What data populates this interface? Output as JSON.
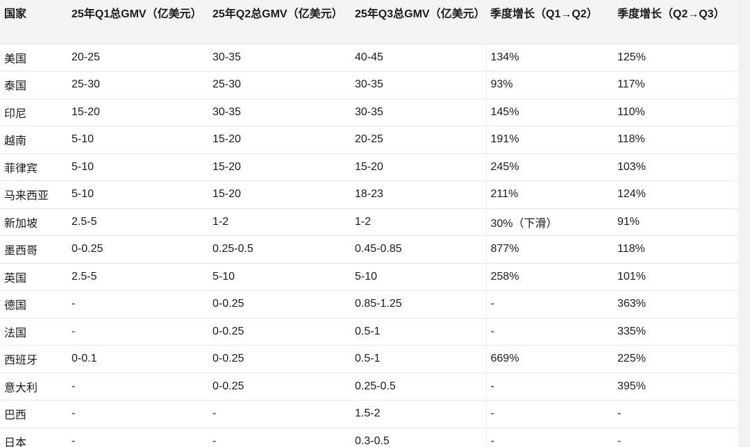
{
  "table": {
    "header": [
      "国家",
      "25年Q1总GMV（亿美元）",
      "25年Q2总GMV（亿美元）",
      "25年Q3总GMV（亿美元）",
      "季度增长（Q1→Q2）",
      "季度增长（Q2→Q3）"
    ],
    "rows": [
      [
        "美国",
        "20-25",
        "30-35",
        "40-45",
        "134%",
        "125%"
      ],
      [
        "泰国",
        "25-30",
        "25-30",
        "30-35",
        "93%",
        "117%"
      ],
      [
        "印尼",
        "15-20",
        "30-35",
        "30-35",
        "145%",
        "110%"
      ],
      [
        "越南",
        "5-10",
        "15-20",
        "20-25",
        "191%",
        "118%"
      ],
      [
        "菲律宾",
        "5-10",
        "15-20",
        "15-20",
        "245%",
        "103%"
      ],
      [
        "马来西亚",
        "5-10",
        "15-20",
        "18-23",
        "211%",
        "124%"
      ],
      [
        "新加坡",
        "2.5-5",
        "1-2",
        "1-2",
        "30%（下滑）",
        "91%"
      ],
      [
        "墨西哥",
        "0-0.25",
        "0.25-0.5",
        "0.45-0.85",
        "877%",
        "118%"
      ],
      [
        "英国",
        "2.5-5",
        "5-10",
        "5-10",
        "258%",
        "101%"
      ],
      [
        "德国",
        "-",
        "0-0.25",
        "0.85-1.25",
        "-",
        "363%"
      ],
      [
        "法国",
        "-",
        "0-0.25",
        "0.5-1",
        "-",
        "335%"
      ],
      [
        "西班牙",
        "0-0.1",
        "0-0.25",
        "0.5-1",
        "669%",
        "225%"
      ],
      [
        "意大利",
        "-",
        "0-0.25",
        "0.25-0.5",
        "-",
        "395%"
      ],
      [
        "巴西",
        "-",
        "-",
        "1.5-2",
        "-",
        "-"
      ],
      [
        "日本",
        "-",
        "-",
        "0.3-0.5",
        "-",
        "-"
      ]
    ]
  }
}
